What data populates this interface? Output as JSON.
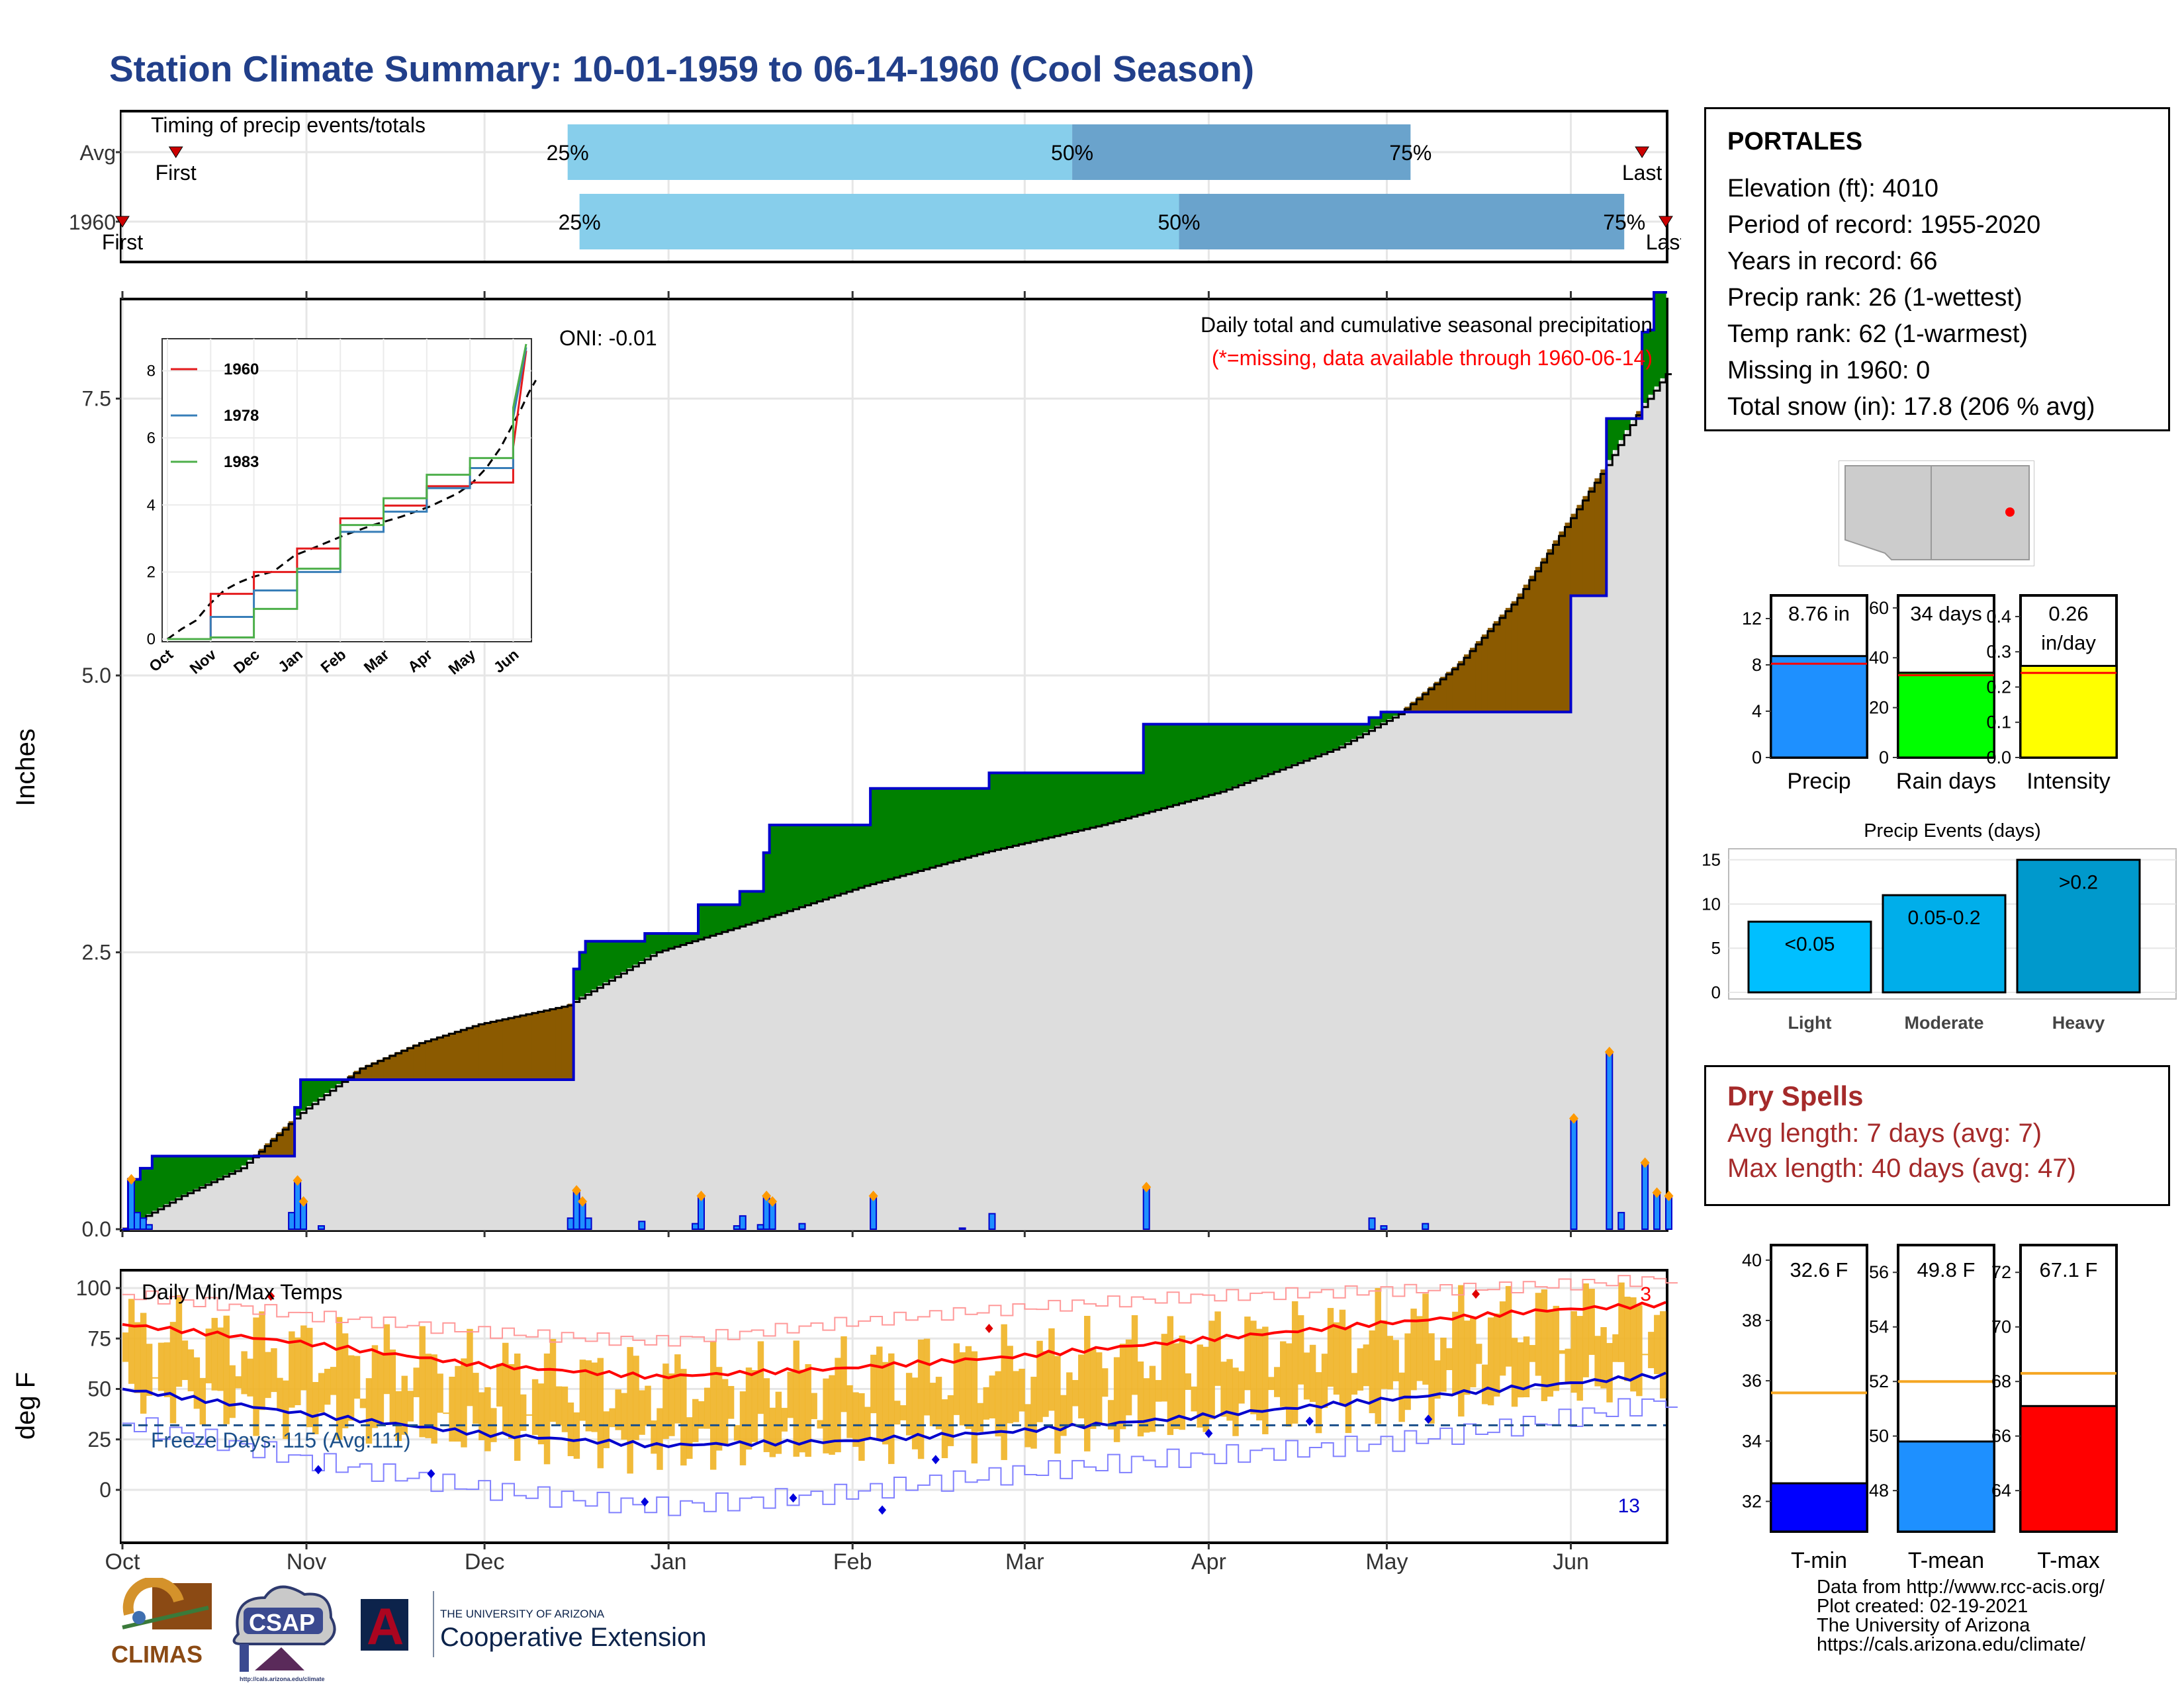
{
  "title": "Station Climate Summary: 10-01-1959 to 06-14-1960 (Cool Season)",
  "months": [
    "Oct",
    "Nov",
    "Dec",
    "Jan",
    "Feb",
    "Mar",
    "Apr",
    "May",
    "Jun"
  ],
  "timing": {
    "title": "Timing of precip events/totals",
    "rows": [
      {
        "label": "Avg",
        "first": "First",
        "last": "Last",
        "p25": "25%",
        "p50": "50%",
        "p75": "75%",
        "q25_day": 75,
        "q50_day": 160,
        "q75_day": 217,
        "first_day": 9,
        "last_day": 256
      },
      {
        "label": "1960",
        "first": "First",
        "last": "Last",
        "p25": "25%",
        "p50": "50%",
        "p75": "75%",
        "q25_day": 77,
        "q50_day": 178,
        "q75_day": 253,
        "first_day": 0,
        "last_day": 260
      }
    ],
    "colors": {
      "light": "#87ceeb",
      "dark": "#6aa3cc",
      "marker": "#cc0000"
    }
  },
  "precip_panel": {
    "y_axis_label": "Inches",
    "y_ticks": [
      "0.0",
      "2.5",
      "5.0",
      "7.5"
    ],
    "oni": "ONI: -0.01",
    "caption": "Daily total and cumulative seasonal precipitation",
    "missing_note": "(*=missing, data available through 1960-06-14)",
    "colors": {
      "observed": "#0000cc",
      "above": "#008000",
      "below": "#8b5a00",
      "normal": "#dddddd",
      "bars": "#1e90ff",
      "marker": "#ff9900"
    }
  },
  "inset": {
    "y_ticks": [
      "0",
      "2",
      "4",
      "6",
      "8"
    ],
    "x_ticks": [
      "Oct",
      "Nov",
      "Dec",
      "Jan",
      "Feb",
      "Mar",
      "Apr",
      "May",
      "Jun"
    ],
    "legend": [
      {
        "name": "1960",
        "color": "#e41a1c"
      },
      {
        "name": "1978",
        "color": "#377eb8"
      },
      {
        "name": "1983",
        "color": "#4daf4a"
      }
    ]
  },
  "temp_panel": {
    "y_axis_label": "deg F",
    "y_ticks": [
      "0",
      "25",
      "50",
      "75",
      "100"
    ],
    "title": "Daily Min/Max Temps",
    "freeze": "Freeze Days: 115 (Avg:111)",
    "count_high": "3",
    "count_low": "13",
    "colors": {
      "bars": "#f0b323",
      "max": "#ff0000",
      "min": "#0000cc",
      "freeze": "#1a4f8a"
    }
  },
  "station": {
    "name": "PORTALES",
    "lines": [
      "Elevation (ft): 4010",
      "Period of record: 1955-2020",
      "Years in record: 66",
      "Precip rank: 26 (1-wettest)",
      "Temp rank: 62 (1-warmest)",
      "Missing in 1960: 0",
      "Total snow (in): 17.8 (206 % avg)"
    ]
  },
  "mini_precip": [
    {
      "label": "Precip",
      "value_text": "8.76 in",
      "value": 8.76,
      "avg": 8.1,
      "ymax": 14,
      "ticks": [
        "0",
        "4",
        "8",
        "12"
      ],
      "tickvals": [
        0,
        4,
        8,
        12
      ],
      "color": "#1e90ff"
    },
    {
      "label": "Rain days",
      "value_text": "34 days",
      "value": 34,
      "avg": 33,
      "ymax": 65,
      "ticks": [
        "0",
        "20",
        "40",
        "60"
      ],
      "tickvals": [
        0,
        20,
        40,
        60
      ],
      "color": "#00ff00"
    },
    {
      "label": "Intensity",
      "value_text": "0.26",
      "value_text2": "in/day",
      "value": 0.26,
      "avg": 0.24,
      "ymax": 0.46,
      "ticks": [
        "0.0",
        "0.1",
        "0.2",
        "0.3",
        "0.4"
      ],
      "tickvals": [
        0,
        0.1,
        0.2,
        0.3,
        0.4
      ],
      "color": "#ffff00"
    }
  ],
  "events": {
    "title": "Precip Events (days)",
    "y_ticks": [
      "0",
      "5",
      "10",
      "15"
    ],
    "bars": [
      {
        "label": "Light",
        "range": "<0.05",
        "value": 8,
        "color": "#00bfff"
      },
      {
        "label": "Moderate",
        "range": "0.05-0.2",
        "value": 11,
        "color": "#00aeea"
      },
      {
        "label": "Heavy",
        "range": ">0.2",
        "value": 15,
        "color": "#0099cc"
      }
    ]
  },
  "dry_spells": {
    "title": "Dry Spells",
    "avg": "Avg length: 7 days (avg: 7)",
    "max": "Max length: 40 days (avg: 47)",
    "color": "#a52a2a"
  },
  "mini_temp": [
    {
      "label": "T-min",
      "value_text": "32.6 F",
      "value": 32.6,
      "avg": 35.6,
      "ymin": 31,
      "ymax": 40.5,
      "ticks": [
        "32",
        "34",
        "36",
        "38",
        "40"
      ],
      "tickvals": [
        32,
        34,
        36,
        38,
        40
      ],
      "color": "#0000ff"
    },
    {
      "label": "T-mean",
      "value_text": "49.8 F",
      "value": 49.8,
      "avg": 52,
      "ymin": 46.5,
      "ymax": 57,
      "ticks": [
        "48",
        "50",
        "52",
        "54",
        "56"
      ],
      "tickvals": [
        48,
        50,
        52,
        54,
        56
      ],
      "color": "#1e90ff"
    },
    {
      "label": "T-max",
      "value_text": "67.1 F",
      "value": 67.1,
      "avg": 68.3,
      "ymin": 62.5,
      "ymax": 73,
      "ticks": [
        "64",
        "66",
        "68",
        "70",
        "72"
      ],
      "tickvals": [
        64,
        66,
        68,
        70,
        72
      ],
      "color": "#ff0000"
    }
  ],
  "footer": {
    "lines": [
      "Data from http://www.rcc-acis.org/",
      "Plot created: 02-19-2021",
      "The University of Arizona",
      "https://cals.arizona.edu/climate/"
    ]
  },
  "logos": {
    "climas": "CLIMAS",
    "csap": "CSAP",
    "csap_url": "http://cals.arizona.edu/climate",
    "ua_small": "THE UNIVERSITY OF ARIZONA",
    "ua_big": "Cooperative Extension",
    "ua_letter": "A"
  },
  "chart_data": [
    {
      "type": "area",
      "title": "Daily total and cumulative seasonal precipitation",
      "ylabel": "Inches",
      "ylim": [
        0,
        8.8
      ],
      "x_unit": "days since Oct 1",
      "observed_cumulative": [
        [
          0,
          0
        ],
        [
          1,
          0.45
        ],
        [
          3,
          0.55
        ],
        [
          5,
          0.66
        ],
        [
          28,
          0.66
        ],
        [
          29,
          1.1
        ],
        [
          30,
          1.35
        ],
        [
          57,
          1.35
        ],
        [
          75,
          1.35
        ],
        [
          76,
          2.35
        ],
        [
          77,
          2.5
        ],
        [
          78,
          2.6
        ],
        [
          87,
          2.6
        ],
        [
          88,
          2.67
        ],
        [
          96,
          2.67
        ],
        [
          97,
          2.93
        ],
        [
          103,
          2.93
        ],
        [
          104,
          3.05
        ],
        [
          107,
          3.05
        ],
        [
          108,
          3.4
        ],
        [
          109,
          3.65
        ],
        [
          125,
          3.65
        ],
        [
          126,
          3.98
        ],
        [
          145,
          3.98
        ],
        [
          146,
          4.12
        ],
        [
          171,
          4.12
        ],
        [
          172,
          4.56
        ],
        [
          209,
          4.56
        ],
        [
          210,
          4.62
        ],
        [
          212,
          4.67
        ],
        [
          243,
          4.67
        ],
        [
          244,
          5.72
        ],
        [
          249,
          5.72
        ],
        [
          250,
          7.32
        ],
        [
          255,
          7.32
        ],
        [
          256,
          8.1
        ],
        [
          257,
          8.12
        ],
        [
          258,
          8.46
        ],
        [
          260,
          8.76
        ]
      ],
      "average_cumulative": [
        [
          0,
          0
        ],
        [
          10,
          0.3
        ],
        [
          20,
          0.55
        ],
        [
          30,
          1.05
        ],
        [
          40,
          1.45
        ],
        [
          50,
          1.68
        ],
        [
          60,
          1.85
        ],
        [
          75,
          2.02
        ],
        [
          90,
          2.5
        ],
        [
          105,
          2.75
        ],
        [
          125,
          3.1
        ],
        [
          145,
          3.4
        ],
        [
          165,
          3.65
        ],
        [
          185,
          3.95
        ],
        [
          205,
          4.35
        ],
        [
          215,
          4.65
        ],
        [
          225,
          5.1
        ],
        [
          235,
          5.7
        ],
        [
          245,
          6.5
        ],
        [
          250,
          6.9
        ],
        [
          255,
          7.35
        ],
        [
          260,
          7.72
        ]
      ],
      "daily_precip": [
        [
          1,
          0.45
        ],
        [
          2,
          0.15
        ],
        [
          3,
          0.1
        ],
        [
          4,
          0.04
        ],
        [
          28,
          0.15
        ],
        [
          29,
          0.44
        ],
        [
          30,
          0.25
        ],
        [
          33,
          0.03
        ],
        [
          75,
          0.1
        ],
        [
          76,
          0.35
        ],
        [
          77,
          0.25
        ],
        [
          78,
          0.1
        ],
        [
          87,
          0.07
        ],
        [
          96,
          0.05
        ],
        [
          97,
          0.3
        ],
        [
          103,
          0.03
        ],
        [
          104,
          0.12
        ],
        [
          107,
          0.04
        ],
        [
          108,
          0.3
        ],
        [
          109,
          0.25
        ],
        [
          114,
          0.05
        ],
        [
          126,
          0.3
        ],
        [
          141,
          0.01
        ],
        [
          146,
          0.14
        ],
        [
          172,
          0.38
        ],
        [
          210,
          0.1
        ],
        [
          212,
          0.03
        ],
        [
          219,
          0.05
        ],
        [
          244,
          1.0
        ],
        [
          250,
          1.6
        ],
        [
          252,
          0.15
        ],
        [
          256,
          0.6
        ],
        [
          258,
          0.33
        ],
        [
          260,
          0.3
        ]
      ]
    },
    {
      "type": "line",
      "title": "",
      "x": [
        "Oct",
        "Nov",
        "Dec",
        "Jan",
        "Feb",
        "Mar",
        "Apr",
        "May",
        "Jun"
      ],
      "ylim": [
        0,
        8.8
      ],
      "series": [
        {
          "name": "1960",
          "values": [
            0,
            1.35,
            2.0,
            2.7,
            3.6,
            3.98,
            4.56,
            4.67,
            5.72
          ]
        },
        {
          "name": "1978",
          "values": [
            0,
            0.66,
            1.45,
            2.0,
            3.2,
            3.8,
            4.5,
            5.1,
            6.6
          ]
        },
        {
          "name": "1983",
          "values": [
            0,
            0.05,
            0.9,
            2.1,
            3.4,
            4.2,
            4.9,
            5.4,
            6.9
          ]
        }
      ]
    },
    {
      "type": "line",
      "title": "Daily Min/Max Temps",
      "ylabel": "deg F",
      "ylim": [
        -18,
        110
      ],
      "freeze_line": 32,
      "series": [
        {
          "name": "Normal max",
          "values": [
            [
              0,
              82
            ],
            [
              30,
              73
            ],
            [
              60,
              62
            ],
            [
              90,
              56
            ],
            [
              120,
              60
            ],
            [
              150,
              66
            ],
            [
              180,
              74
            ],
            [
              210,
              82
            ],
            [
              240,
              89
            ],
            [
              260,
              92
            ]
          ]
        },
        {
          "name": "Normal min",
          "values": [
            [
              0,
              50
            ],
            [
              30,
              38
            ],
            [
              60,
              28
            ],
            [
              90,
              22
            ],
            [
              120,
              24
            ],
            [
              150,
              29
            ],
            [
              180,
              36
            ],
            [
              210,
              44
            ],
            [
              240,
              52
            ],
            [
              260,
              57
            ]
          ]
        },
        {
          "name": "Record high",
          "values": [
            [
              0,
              95
            ],
            [
              30,
              86
            ],
            [
              60,
              80
            ],
            [
              90,
              75
            ],
            [
              120,
              82
            ],
            [
              150,
              88
            ],
            [
              180,
              95
            ],
            [
              210,
              100
            ],
            [
              240,
              103
            ],
            [
              260,
              105
            ]
          ]
        },
        {
          "name": "Record low",
          "values": [
            [
              0,
              30
            ],
            [
              30,
              14
            ],
            [
              60,
              3
            ],
            [
              90,
              -6
            ],
            [
              120,
              -3
            ],
            [
              150,
              5
            ],
            [
              180,
              15
            ],
            [
              210,
              25
            ],
            [
              240,
              37
            ],
            [
              260,
              45
            ]
          ]
        }
      ]
    }
  ]
}
